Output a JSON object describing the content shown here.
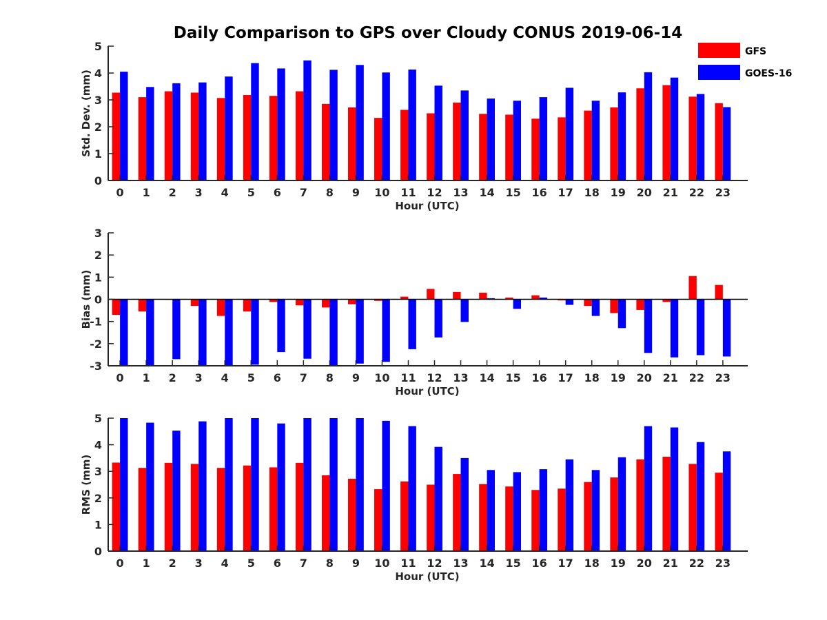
{
  "chart_data": [
    {
      "type": "bar",
      "title": "Daily Comparison to GPS over Cloudy CONUS 2019-06-14",
      "xlabel": "Hour (UTC)",
      "ylabel": "Std. Dev. (mm)",
      "ylim": [
        0,
        5
      ],
      "yticks": [
        "0",
        "1",
        "2",
        "3",
        "4",
        "5"
      ],
      "categories": [
        "0",
        "1",
        "2",
        "3",
        "4",
        "5",
        "6",
        "7",
        "8",
        "9",
        "10",
        "11",
        "12",
        "13",
        "14",
        "15",
        "16",
        "17",
        "18",
        "19",
        "20",
        "21",
        "22",
        "23"
      ],
      "series": [
        {
          "name": "GFS",
          "color": "#ff0000",
          "values": [
            3.27,
            3.1,
            3.32,
            3.27,
            3.07,
            3.18,
            3.15,
            3.32,
            2.85,
            2.72,
            2.33,
            2.63,
            2.5,
            2.9,
            2.48,
            2.45,
            2.3,
            2.35,
            2.6,
            2.72,
            3.43,
            3.55,
            3.12,
            2.88
          ]
        },
        {
          "name": "GOES-16",
          "color": "#0000ff",
          "values": [
            4.05,
            3.48,
            3.62,
            3.65,
            3.87,
            4.37,
            4.17,
            4.47,
            4.12,
            4.3,
            4.02,
            4.13,
            3.53,
            3.35,
            3.05,
            2.97,
            3.1,
            3.45,
            2.97,
            3.28,
            4.03,
            3.83,
            3.22,
            2.73
          ]
        }
      ],
      "legend": "top-right"
    },
    {
      "type": "bar",
      "xlabel": "Hour (UTC)",
      "ylabel": "Bias (mm)",
      "ylim": [
        -3,
        3
      ],
      "yticks": [
        "-3",
        "-2",
        "-1",
        "0",
        "1",
        "2",
        "3"
      ],
      "zero_line": true,
      "categories": [
        "0",
        "1",
        "2",
        "3",
        "4",
        "5",
        "6",
        "7",
        "8",
        "9",
        "10",
        "11",
        "12",
        "13",
        "14",
        "15",
        "16",
        "17",
        "18",
        "19",
        "20",
        "21",
        "22",
        "23"
      ],
      "series": [
        {
          "color": "#ff0000",
          "values": [
            -0.7,
            -0.55,
            -0.02,
            -0.3,
            -0.75,
            -0.55,
            -0.12,
            -0.27,
            -0.37,
            -0.22,
            -0.07,
            0.12,
            0.47,
            0.33,
            0.3,
            0.08,
            0.18,
            -0.05,
            -0.3,
            -0.62,
            -0.48,
            -0.12,
            1.05,
            0.65
          ]
        },
        {
          "color": "#0000ff",
          "values": [
            -3.0,
            -3.0,
            -2.7,
            -3.0,
            -3.0,
            -2.95,
            -2.38,
            -2.68,
            -3.0,
            -2.9,
            -2.82,
            -2.25,
            -1.72,
            -1.02,
            0.05,
            -0.43,
            0.08,
            -0.25,
            -0.75,
            -1.3,
            -2.42,
            -2.62,
            -2.52,
            -2.58
          ]
        }
      ]
    },
    {
      "type": "bar",
      "xlabel": "Hour (UTC)",
      "ylabel": "RMS (mm)",
      "ylim": [
        0,
        5
      ],
      "yticks": [
        "0",
        "1",
        "2",
        "3",
        "4",
        "5"
      ],
      "categories": [
        "0",
        "1",
        "2",
        "3",
        "4",
        "5",
        "6",
        "7",
        "8",
        "9",
        "10",
        "11",
        "12",
        "13",
        "14",
        "15",
        "16",
        "17",
        "18",
        "19",
        "20",
        "21",
        "22",
        "23"
      ],
      "series": [
        {
          "color": "#ff0000",
          "values": [
            3.33,
            3.13,
            3.32,
            3.28,
            3.13,
            3.22,
            3.15,
            3.32,
            2.85,
            2.72,
            2.33,
            2.62,
            2.5,
            2.9,
            2.52,
            2.43,
            2.3,
            2.35,
            2.6,
            2.77,
            3.45,
            3.55,
            3.28,
            2.95
          ]
        },
        {
          "color": "#0000ff",
          "values": [
            5.0,
            4.83,
            4.53,
            4.88,
            5.0,
            5.0,
            4.8,
            5.0,
            5.0,
            5.0,
            4.9,
            4.7,
            3.92,
            3.5,
            3.05,
            2.97,
            3.08,
            3.45,
            3.05,
            3.53,
            4.7,
            4.65,
            4.1,
            3.75
          ]
        }
      ]
    }
  ]
}
